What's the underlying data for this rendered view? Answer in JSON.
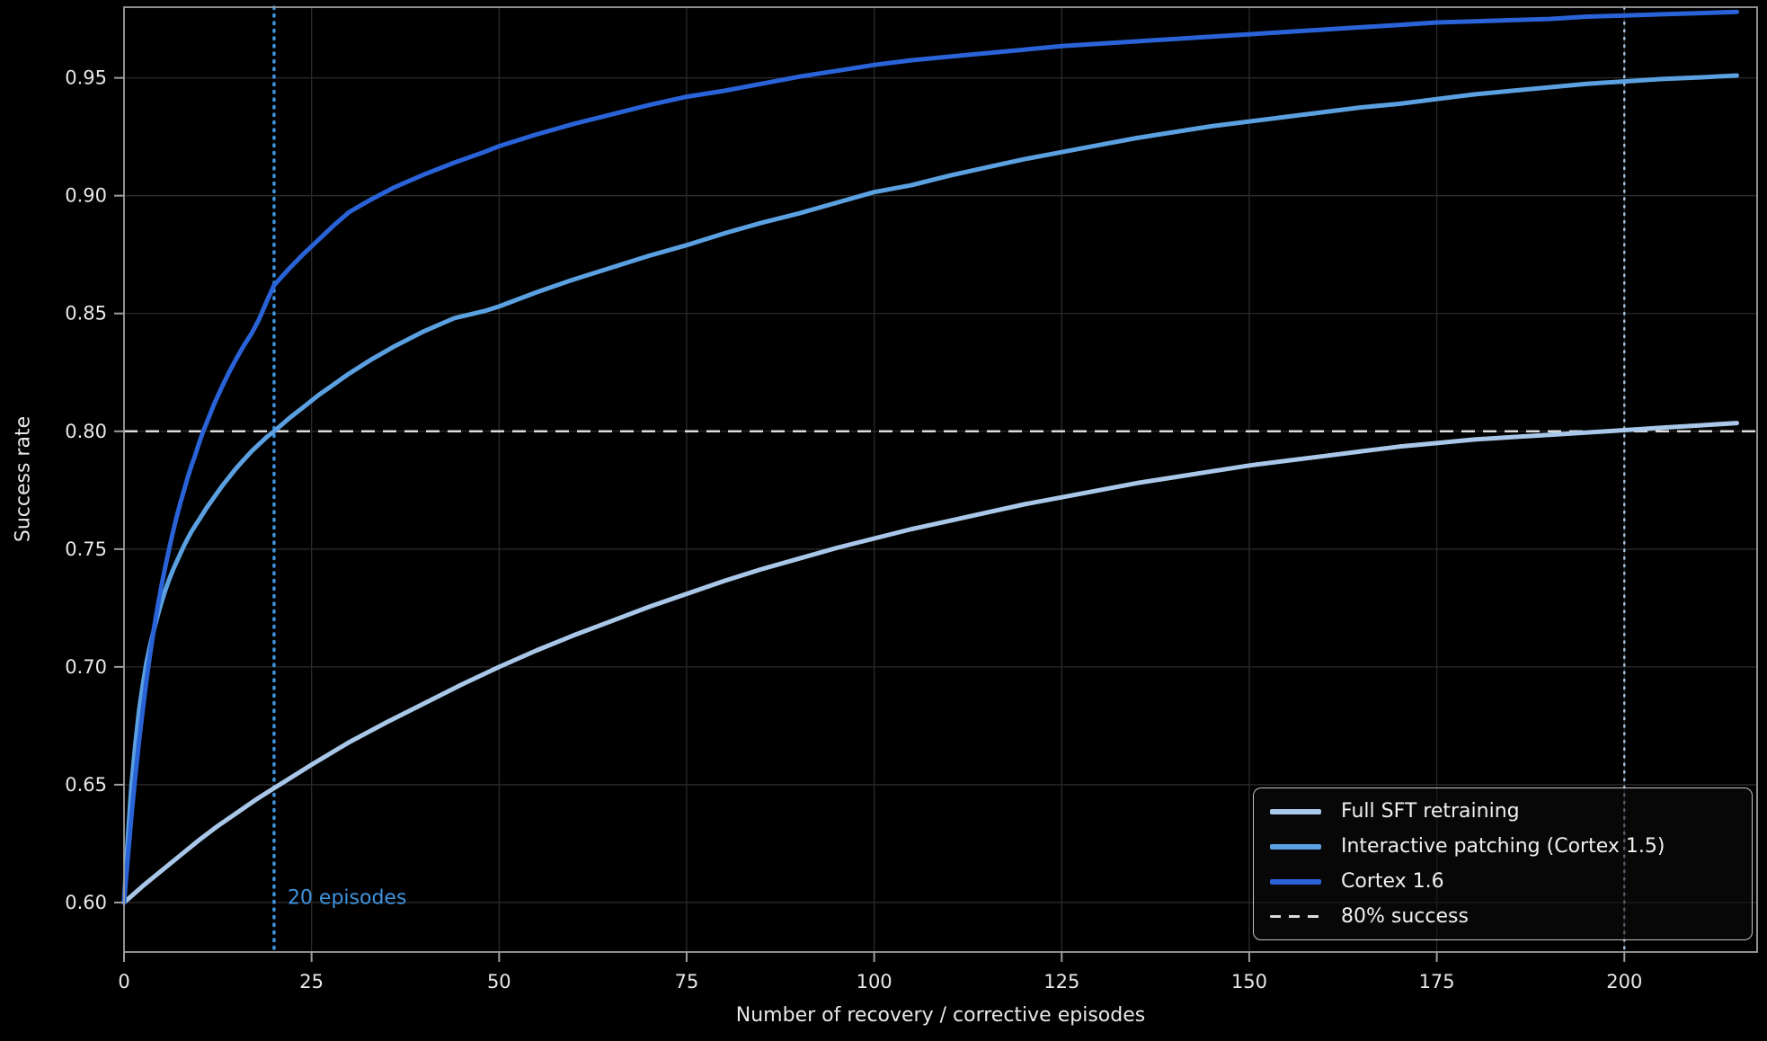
{
  "figure": {
    "background": "#000000"
  },
  "chart_data": {
    "type": "line",
    "title": "",
    "xlabel": "Number of recovery / corrective episodes",
    "ylabel": "Success rate",
    "xlim": [
      0,
      217.7
    ],
    "ylim": [
      0.579,
      0.98
    ],
    "xticks": [
      0,
      25,
      50,
      75,
      100,
      125,
      150,
      175,
      200
    ],
    "yticks": [
      0.6,
      0.65,
      0.7,
      0.75,
      0.8,
      0.85,
      0.9,
      0.95
    ],
    "grid": true,
    "style": {
      "background": "#000000",
      "grid_color": "#2a2a2b",
      "spine_color": "#9e9e9e",
      "tick_color": "#9e9e9e",
      "tick_label_color": "#e8e8e8",
      "axis_label_color": "#e8e8e8"
    },
    "series": [
      {
        "name": "Full SFT retraining",
        "color": "#a9c7e9",
        "line_width": 5,
        "points": [
          [
            0,
            0.6
          ],
          [
            2.5,
            0.607
          ],
          [
            5,
            0.6135
          ],
          [
            7.5,
            0.62
          ],
          [
            10,
            0.6265
          ],
          [
            12.5,
            0.6325
          ],
          [
            15,
            0.638
          ],
          [
            17.5,
            0.6435
          ],
          [
            20,
            0.6485
          ],
          [
            25,
            0.6585
          ],
          [
            30,
            0.668
          ],
          [
            35,
            0.6765
          ],
          [
            40,
            0.6845
          ],
          [
            45,
            0.6925
          ],
          [
            50,
            0.7
          ],
          [
            55,
            0.707
          ],
          [
            60,
            0.7135
          ],
          [
            65,
            0.7195
          ],
          [
            70,
            0.7255
          ],
          [
            75,
            0.731
          ],
          [
            80,
            0.7365
          ],
          [
            85,
            0.7415
          ],
          [
            90,
            0.746
          ],
          [
            95,
            0.7505
          ],
          [
            100,
            0.7545
          ],
          [
            105,
            0.7585
          ],
          [
            110,
            0.762
          ],
          [
            115,
            0.7655
          ],
          [
            120,
            0.769
          ],
          [
            125,
            0.772
          ],
          [
            130,
            0.775
          ],
          [
            135,
            0.778
          ],
          [
            140,
            0.7805
          ],
          [
            145,
            0.783
          ],
          [
            150,
            0.7855
          ],
          [
            155,
            0.7875
          ],
          [
            160,
            0.7895
          ],
          [
            165,
            0.7915
          ],
          [
            170,
            0.7935
          ],
          [
            175,
            0.795
          ],
          [
            180,
            0.7965
          ],
          [
            185,
            0.7975
          ],
          [
            190,
            0.7985
          ],
          [
            195,
            0.7995
          ],
          [
            200,
            0.8005
          ],
          [
            205,
            0.8015
          ],
          [
            210,
            0.8025
          ],
          [
            215,
            0.8035
          ]
        ]
      },
      {
        "name": "Interactive patching (Cortex 1.5)",
        "color": "#5ba0e0",
        "line_width": 5,
        "points": [
          [
            0,
            0.6
          ],
          [
            0.5,
            0.627
          ],
          [
            1,
            0.65
          ],
          [
            1.5,
            0.667
          ],
          [
            2,
            0.6815
          ],
          [
            2.5,
            0.6925
          ],
          [
            3,
            0.702
          ],
          [
            3.5,
            0.7095
          ],
          [
            4,
            0.716
          ],
          [
            4.5,
            0.722
          ],
          [
            5,
            0.7275
          ],
          [
            5.5,
            0.7325
          ],
          [
            6,
            0.737
          ],
          [
            6.5,
            0.741
          ],
          [
            7,
            0.7445
          ],
          [
            7.5,
            0.748
          ],
          [
            8,
            0.7515
          ],
          [
            8.5,
            0.7545
          ],
          [
            9,
            0.7575
          ],
          [
            9.5,
            0.76
          ],
          [
            10,
            0.7625
          ],
          [
            11,
            0.7675
          ],
          [
            12,
            0.772
          ],
          [
            13,
            0.7765
          ],
          [
            14,
            0.7805
          ],
          [
            15,
            0.7845
          ],
          [
            16,
            0.788
          ],
          [
            17,
            0.7915
          ],
          [
            18,
            0.7945
          ],
          [
            19,
            0.7975
          ],
          [
            20,
            0.8
          ],
          [
            22,
            0.8055
          ],
          [
            24,
            0.8105
          ],
          [
            26,
            0.8155
          ],
          [
            28,
            0.82
          ],
          [
            30,
            0.8245
          ],
          [
            33,
            0.8305
          ],
          [
            36,
            0.836
          ],
          [
            40,
            0.8425
          ],
          [
            44,
            0.848
          ],
          [
            48,
            0.851
          ],
          [
            50,
            0.853
          ],
          [
            55,
            0.859
          ],
          [
            60,
            0.8645
          ],
          [
            65,
            0.8695
          ],
          [
            70,
            0.8745
          ],
          [
            75,
            0.879
          ],
          [
            80,
            0.884
          ],
          [
            85,
            0.8885
          ],
          [
            90,
            0.8925
          ],
          [
            95,
            0.897
          ],
          [
            100,
            0.9015
          ],
          [
            105,
            0.9045
          ],
          [
            110,
            0.9085
          ],
          [
            115,
            0.912
          ],
          [
            120,
            0.9155
          ],
          [
            125,
            0.9185
          ],
          [
            130,
            0.9215
          ],
          [
            135,
            0.9245
          ],
          [
            140,
            0.927
          ],
          [
            145,
            0.9295
          ],
          [
            150,
            0.9315
          ],
          [
            155,
            0.9335
          ],
          [
            160,
            0.9355
          ],
          [
            165,
            0.9375
          ],
          [
            170,
            0.939
          ],
          [
            175,
            0.941
          ],
          [
            180,
            0.943
          ],
          [
            185,
            0.9445
          ],
          [
            190,
            0.946
          ],
          [
            195,
            0.9475
          ],
          [
            200,
            0.9485
          ],
          [
            205,
            0.9495
          ],
          [
            210,
            0.9502
          ],
          [
            215,
            0.951
          ]
        ]
      },
      {
        "name": "Cortex 1.6",
        "color": "#2a63d8",
        "line_width": 5,
        "points": [
          [
            0,
            0.6
          ],
          [
            0.5,
            0.619
          ],
          [
            1,
            0.637
          ],
          [
            1.5,
            0.6535
          ],
          [
            2,
            0.6685
          ],
          [
            2.5,
            0.682
          ],
          [
            3,
            0.6945
          ],
          [
            3.5,
            0.706
          ],
          [
            4,
            0.7165
          ],
          [
            4.5,
            0.726
          ],
          [
            5,
            0.7345
          ],
          [
            5.5,
            0.7425
          ],
          [
            6,
            0.75
          ],
          [
            6.5,
            0.757
          ],
          [
            7,
            0.7635
          ],
          [
            7.5,
            0.7695
          ],
          [
            8,
            0.775
          ],
          [
            8.5,
            0.7805
          ],
          [
            9,
            0.7855
          ],
          [
            9.5,
            0.79
          ],
          [
            10,
            0.795
          ],
          [
            10.5,
            0.7995
          ],
          [
            11,
            0.8035
          ],
          [
            12,
            0.8115
          ],
          [
            13,
            0.8185
          ],
          [
            14,
            0.825
          ],
          [
            15,
            0.831
          ],
          [
            16,
            0.8365
          ],
          [
            17,
            0.8415
          ],
          [
            18,
            0.8475
          ],
          [
            19,
            0.855
          ],
          [
            20,
            0.862
          ],
          [
            22,
            0.869
          ],
          [
            24,
            0.8755
          ],
          [
            26,
            0.8815
          ],
          [
            28,
            0.8875
          ],
          [
            30,
            0.893
          ],
          [
            33,
            0.8985
          ],
          [
            36,
            0.9035
          ],
          [
            40,
            0.909
          ],
          [
            44,
            0.914
          ],
          [
            48,
            0.9185
          ],
          [
            50,
            0.921
          ],
          [
            55,
            0.926
          ],
          [
            60,
            0.9305
          ],
          [
            65,
            0.9345
          ],
          [
            70,
            0.9385
          ],
          [
            75,
            0.942
          ],
          [
            80,
            0.9445
          ],
          [
            85,
            0.9475
          ],
          [
            90,
            0.9505
          ],
          [
            95,
            0.953
          ],
          [
            100,
            0.9555
          ],
          [
            105,
            0.9575
          ],
          [
            110,
            0.959
          ],
          [
            115,
            0.9605
          ],
          [
            120,
            0.962
          ],
          [
            125,
            0.9635
          ],
          [
            130,
            0.9645
          ],
          [
            135,
            0.9655
          ],
          [
            140,
            0.9665
          ],
          [
            145,
            0.9675
          ],
          [
            150,
            0.9685
          ],
          [
            155,
            0.9695
          ],
          [
            160,
            0.9705
          ],
          [
            165,
            0.9715
          ],
          [
            170,
            0.9725
          ],
          [
            175,
            0.9735
          ],
          [
            180,
            0.974
          ],
          [
            185,
            0.9745
          ],
          [
            190,
            0.975
          ],
          [
            195,
            0.976
          ],
          [
            200,
            0.9765
          ],
          [
            205,
            0.977
          ],
          [
            210,
            0.9775
          ],
          [
            215,
            0.978
          ]
        ]
      }
    ],
    "reference_lines": [
      {
        "orientation": "horizontal",
        "value": 0.8,
        "style": "dashed",
        "color": "#dcdcdc",
        "width": 2.5,
        "label": "80% success"
      },
      {
        "orientation": "vertical",
        "value": 20,
        "style": "dotted",
        "color": "#3f93dd",
        "width": 3.5
      },
      {
        "orientation": "vertical",
        "value": 200,
        "style": "dotted",
        "color": "#a3bedd",
        "width": 2.5
      }
    ],
    "annotations": [
      {
        "text": "20 episodes",
        "x": 21.8,
        "y": 0.602,
        "color": "#3f93dd"
      }
    ],
    "legend": {
      "position": "lower right",
      "entries": [
        {
          "label": "Full SFT retraining",
          "color": "#a9c7e9",
          "style": "solid"
        },
        {
          "label": "Interactive patching (Cortex 1.5)",
          "color": "#5ba0e0",
          "style": "solid"
        },
        {
          "label": "Cortex 1.6",
          "color": "#2a63d8",
          "style": "solid"
        },
        {
          "label": "80% success",
          "color": "#dcdcdc",
          "style": "dashed"
        }
      ]
    }
  }
}
